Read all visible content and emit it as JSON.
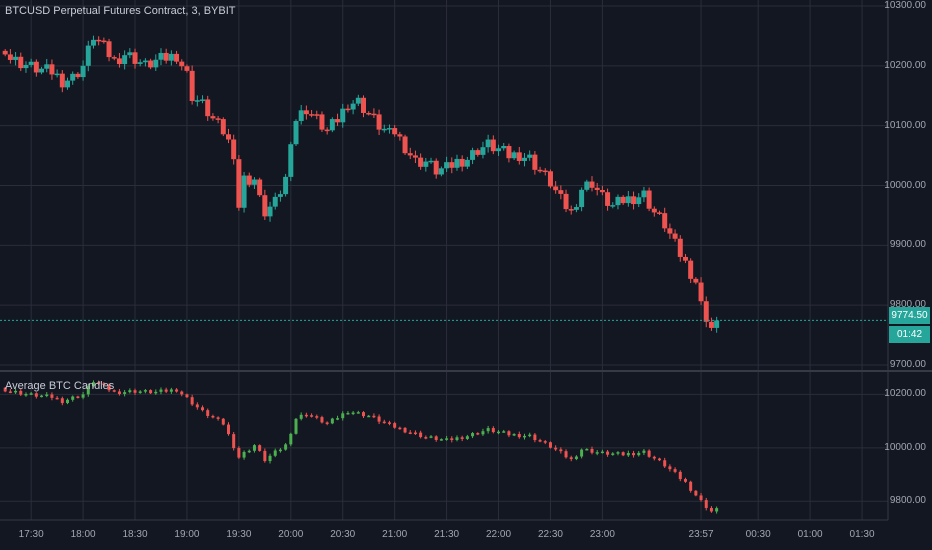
{
  "header": {
    "main_title": "BTCUSD Perpetual Futures Contract, 3, BYBIT",
    "indicator_title": "Average BTC Candles"
  },
  "price_axis": {
    "main_labels": [
      "10300.00",
      "10200.00",
      "10100.00",
      "10000.00",
      "9900.00",
      "9800.00",
      "9700.00"
    ],
    "indicator_labels": [
      "10200.00",
      "10000.00",
      "9800.00"
    ]
  },
  "last_price": {
    "value": "9774.50",
    "countdown": "01:42"
  },
  "time_axis": {
    "labels": [
      "17:30",
      "18:00",
      "18:30",
      "19:00",
      "19:30",
      "20:00",
      "20:30",
      "21:00",
      "21:30",
      "22:00",
      "22:30",
      "23:00",
      "23:57",
      "00:30",
      "01:00",
      "01:30"
    ]
  },
  "colors": {
    "background": "#131722",
    "grid": "#2a2e39",
    "up": "#26a69a",
    "down": "#ef5350",
    "up_small": "#4caf50",
    "down_small": "#ef5350",
    "text": "#a3a6af",
    "last_price": "#26a69a",
    "axis_line": "#363a45"
  },
  "chart_data": [
    {
      "type": "candlestick",
      "title": "BTCUSD Perpetual Futures Contract, 3, BYBIT",
      "x_range": [
        "17:12",
        "01:45"
      ],
      "ylim": [
        9690,
        10310
      ],
      "last_price": 9774.5,
      "close_path": [
        [
          "17:12",
          10225
        ],
        [
          "17:15",
          10230
        ],
        [
          "17:18",
          10212
        ],
        [
          "17:24",
          10205
        ],
        [
          "17:30",
          10198
        ],
        [
          "17:36",
          10193
        ],
        [
          "17:42",
          10190
        ],
        [
          "17:48",
          10175
        ],
        [
          "17:54",
          10180
        ],
        [
          "18:00",
          10200
        ],
        [
          "18:06",
          10250
        ],
        [
          "18:12",
          10230
        ],
        [
          "18:18",
          10208
        ],
        [
          "18:24",
          10220
        ],
        [
          "18:30",
          10212
        ],
        [
          "18:36",
          10200
        ],
        [
          "18:42",
          10208
        ],
        [
          "18:48",
          10213
        ],
        [
          "18:54",
          10218
        ],
        [
          "19:00",
          10185
        ],
        [
          "19:03",
          10150
        ],
        [
          "19:09",
          10135
        ],
        [
          "19:15",
          10110
        ],
        [
          "19:21",
          10090
        ],
        [
          "19:27",
          10055
        ],
        [
          "19:30",
          9965
        ],
        [
          "19:33",
          10010
        ],
        [
          "19:39",
          10010
        ],
        [
          "19:42",
          9975
        ],
        [
          "19:45",
          9955
        ],
        [
          "19:51",
          9970
        ],
        [
          "19:57",
          10010
        ],
        [
          "20:00",
          10080
        ],
        [
          "20:03",
          10110
        ],
        [
          "20:09",
          10128
        ],
        [
          "20:15",
          10110
        ],
        [
          "20:21",
          10090
        ],
        [
          "20:27",
          10110
        ],
        [
          "20:33",
          10138
        ],
        [
          "20:39",
          10140
        ],
        [
          "20:45",
          10120
        ],
        [
          "20:51",
          10100
        ],
        [
          "20:57",
          10085
        ],
        [
          "21:00",
          10090
        ],
        [
          "21:06",
          10065
        ],
        [
          "21:12",
          10040
        ],
        [
          "21:18",
          10040
        ],
        [
          "21:24",
          10025
        ],
        [
          "21:30",
          10028
        ],
        [
          "21:36",
          10040
        ],
        [
          "21:42",
          10045
        ],
        [
          "21:48",
          10060
        ],
        [
          "21:54",
          10068
        ],
        [
          "22:00",
          10060
        ],
        [
          "22:06",
          10050
        ],
        [
          "22:12",
          10052
        ],
        [
          "22:18",
          10045
        ],
        [
          "22:24",
          10025
        ],
        [
          "22:30",
          10005
        ],
        [
          "22:36",
          9975
        ],
        [
          "22:42",
          9955
        ],
        [
          "22:48",
          9995
        ],
        [
          "22:54",
          10005
        ],
        [
          "23:00",
          9980
        ],
        [
          "23:06",
          9965
        ],
        [
          "23:12",
          9975
        ],
        [
          "23:18",
          9980
        ],
        [
          "23:24",
          9985
        ],
        [
          "23:30",
          9955
        ],
        [
          "23:36",
          9935
        ],
        [
          "23:42",
          9900
        ],
        [
          "23:48",
          9870
        ],
        [
          "23:54",
          9840
        ],
        [
          "23:57",
          9800
        ],
        [
          "24:03",
          9762
        ],
        [
          "24:06",
          9774.5
        ]
      ]
    },
    {
      "type": "candlestick",
      "title": "Average BTC Candles",
      "x_range": [
        "17:12",
        "01:45"
      ],
      "ylim": [
        9730,
        10280
      ],
      "close_path": [
        [
          "17:12",
          10225
        ],
        [
          "17:18",
          10212
        ],
        [
          "17:30",
          10198
        ],
        [
          "17:42",
          10190
        ],
        [
          "17:48",
          10175
        ],
        [
          "18:00",
          10200
        ],
        [
          "18:06",
          10250
        ],
        [
          "18:18",
          10208
        ],
        [
          "18:30",
          10212
        ],
        [
          "18:42",
          10208
        ],
        [
          "18:54",
          10218
        ],
        [
          "19:00",
          10185
        ],
        [
          "19:09",
          10135
        ],
        [
          "19:21",
          10090
        ],
        [
          "19:30",
          9965
        ],
        [
          "19:39",
          10010
        ],
        [
          "19:45",
          9955
        ],
        [
          "19:57",
          10010
        ],
        [
          "20:03",
          10110
        ],
        [
          "20:09",
          10128
        ],
        [
          "20:21",
          10090
        ],
        [
          "20:33",
          10138
        ],
        [
          "20:45",
          10120
        ],
        [
          "20:57",
          10085
        ],
        [
          "21:06",
          10065
        ],
        [
          "21:18",
          10040
        ],
        [
          "21:30",
          10028
        ],
        [
          "21:42",
          10045
        ],
        [
          "21:54",
          10068
        ],
        [
          "22:06",
          10050
        ],
        [
          "22:18",
          10045
        ],
        [
          "22:30",
          10005
        ],
        [
          "22:42",
          9955
        ],
        [
          "22:48",
          9995
        ],
        [
          "23:00",
          9980
        ],
        [
          "23:12",
          9975
        ],
        [
          "23:24",
          9985
        ],
        [
          "23:36",
          9935
        ],
        [
          "23:48",
          9870
        ],
        [
          "23:57",
          9800
        ],
        [
          "24:03",
          9762
        ],
        [
          "24:06",
          9774.5
        ]
      ]
    }
  ]
}
